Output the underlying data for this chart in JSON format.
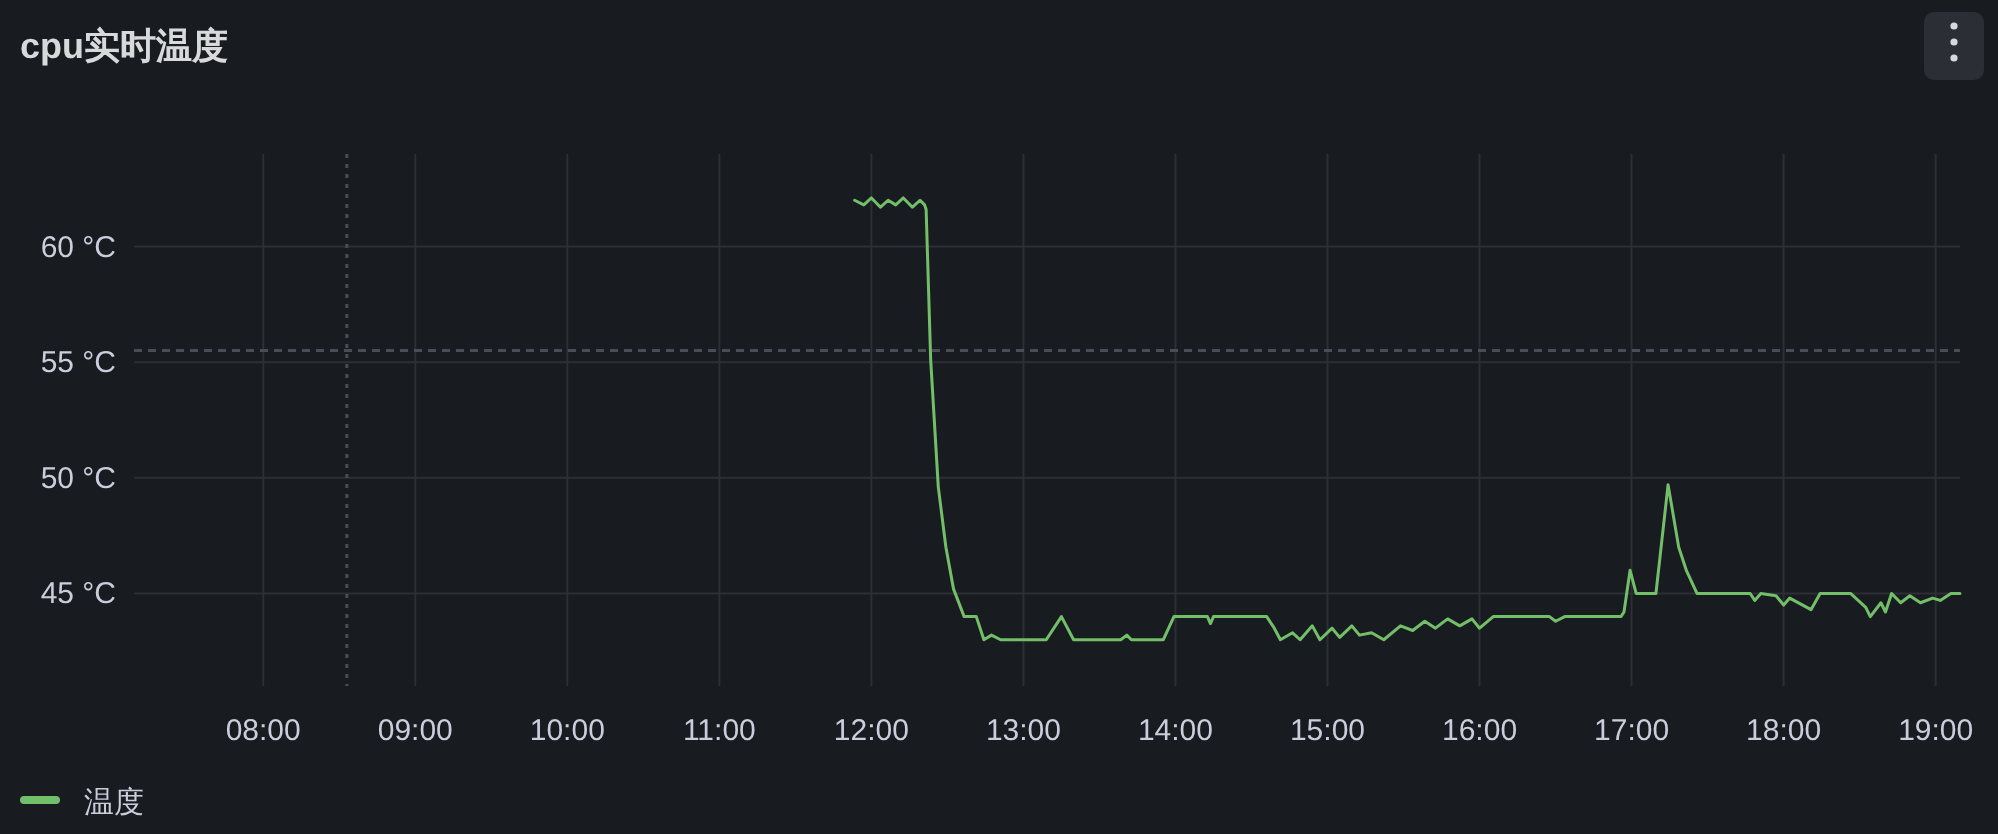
{
  "chart_data": {
    "type": "line",
    "title": "cpu实时温度",
    "x": [
      11.89,
      11.95,
      12.0,
      12.06,
      12.11,
      12.16,
      12.21,
      12.27,
      12.32,
      12.35,
      12.36,
      12.39,
      12.44,
      12.49,
      12.54,
      12.61,
      12.69,
      12.74,
      12.79,
      12.85,
      13.15,
      13.25,
      13.33,
      13.64,
      13.68,
      13.71,
      13.92,
      13.99,
      14.21,
      14.23,
      14.25,
      14.6,
      14.65,
      14.69,
      14.77,
      14.82,
      14.9,
      14.95,
      15.03,
      15.08,
      15.16,
      15.21,
      15.29,
      15.37,
      15.48,
      15.56,
      15.64,
      15.71,
      15.79,
      15.87,
      15.95,
      16.0,
      16.09,
      16.46,
      16.5,
      16.56,
      16.93,
      16.95,
      16.99,
      17.03,
      17.16,
      17.24,
      17.31,
      17.36,
      17.43,
      17.78,
      17.81,
      17.85,
      17.95,
      18.0,
      18.04,
      18.18,
      18.24,
      18.44,
      18.54,
      18.57,
      18.64,
      18.67,
      18.71,
      18.77,
      18.83,
      18.9,
      18.98,
      19.03,
      19.1,
      19.16
    ],
    "series": [
      {
        "name": "温度",
        "color": "#73bf69",
        "values": [
          62.0,
          61.8,
          62.1,
          61.7,
          62.0,
          61.8,
          62.1,
          61.7,
          62.0,
          61.8,
          61.6,
          55.1,
          49.6,
          47.0,
          45.2,
          44.0,
          44.0,
          43.0,
          43.2,
          43.0,
          43.0,
          44.0,
          43.0,
          43.0,
          43.2,
          43.0,
          43.0,
          44.0,
          44.0,
          43.7,
          44.0,
          44.0,
          43.5,
          43.0,
          43.3,
          43.0,
          43.6,
          43.0,
          43.5,
          43.1,
          43.6,
          43.2,
          43.3,
          43.0,
          43.6,
          43.4,
          43.8,
          43.5,
          43.9,
          43.6,
          43.9,
          43.5,
          44.0,
          44.0,
          43.8,
          44.0,
          44.0,
          44.2,
          46.0,
          45.0,
          45.0,
          49.7,
          47.0,
          46.0,
          45.0,
          45.0,
          44.7,
          45.0,
          44.9,
          44.5,
          44.8,
          44.3,
          45.0,
          45.0,
          44.4,
          44.0,
          44.6,
          44.2,
          45.0,
          44.6,
          44.9,
          44.6,
          44.8,
          44.7,
          45.0,
          45.0
        ]
      }
    ],
    "xlim": [
      7.15,
      19.16
    ],
    "xticks": [
      {
        "value": 8,
        "label": "08:00"
      },
      {
        "value": 9,
        "label": "09:00"
      },
      {
        "value": 10,
        "label": "10:00"
      },
      {
        "value": 11,
        "label": "11:00"
      },
      {
        "value": 12,
        "label": "12:00"
      },
      {
        "value": 13,
        "label": "13:00"
      },
      {
        "value": 14,
        "label": "14:00"
      },
      {
        "value": 15,
        "label": "15:00"
      },
      {
        "value": 16,
        "label": "16:00"
      },
      {
        "value": 17,
        "label": "17:00"
      },
      {
        "value": 18,
        "label": "18:00"
      },
      {
        "value": 19,
        "label": "19:00"
      }
    ],
    "ylim": [
      41,
      64
    ],
    "yticks": [
      {
        "value": 45,
        "label": "45 °C"
      },
      {
        "value": 50,
        "label": "50 °C"
      },
      {
        "value": 55,
        "label": "55 °C"
      },
      {
        "value": 60,
        "label": "60 °C"
      }
    ],
    "ref_lines": [
      {
        "axis": "x",
        "value": 8.55,
        "line_style": "dotted",
        "color": "#4a4d55"
      },
      {
        "axis": "y",
        "value": 55.5,
        "line_style": "dashed",
        "color": "#4a4d55"
      }
    ],
    "grid": true,
    "legend": "bottom left"
  }
}
